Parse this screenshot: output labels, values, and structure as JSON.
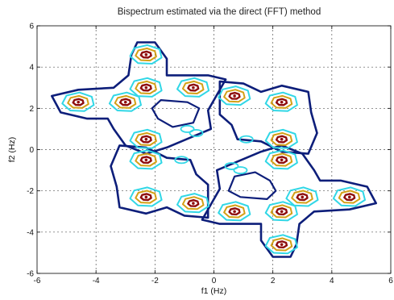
{
  "chart_data": {
    "type": "contour",
    "title": "Bispectrum estimated via the direct (FFT) method",
    "xlabel": "f1 (Hz)",
    "ylabel": "f2 (Hz)",
    "xlim": [
      -6,
      6
    ],
    "ylim": [
      -6,
      6
    ],
    "xticks": [
      -6,
      -4,
      -2,
      0,
      2,
      4,
      6
    ],
    "yticks": [
      -6,
      -4,
      -2,
      0,
      2,
      4,
      6
    ],
    "grid": true,
    "level_colors": {
      "outer": "#0d1e7a",
      "second": "#31d7e6",
      "third": "#d4a017",
      "inner": "#8e0d0d"
    },
    "peaks": [
      {
        "f1": -2.3,
        "f2": 4.6
      },
      {
        "f1": -4.6,
        "f2": 2.3
      },
      {
        "f1": -2.3,
        "f2": 3.0
      },
      {
        "f1": -3.0,
        "f2": 2.3
      },
      {
        "f1": -0.7,
        "f2": 3.0
      },
      {
        "f1": 0.7,
        "f2": 2.6
      },
      {
        "f1": 2.3,
        "f2": 2.3
      },
      {
        "f1": -2.3,
        "f2": 0.5
      },
      {
        "f1": 2.3,
        "f2": 0.5
      },
      {
        "f1": -2.3,
        "f2": -0.5
      },
      {
        "f1": 2.3,
        "f2": -0.5
      },
      {
        "f1": -2.3,
        "f2": -2.3
      },
      {
        "f1": -0.7,
        "f2": -2.6
      },
      {
        "f1": 0.7,
        "f2": -3.0
      },
      {
        "f1": 2.3,
        "f2": -3.0
      },
      {
        "f1": 3.0,
        "f2": -2.3
      },
      {
        "f1": 4.6,
        "f2": -2.3
      },
      {
        "f1": 2.3,
        "f2": -4.6
      }
    ]
  }
}
